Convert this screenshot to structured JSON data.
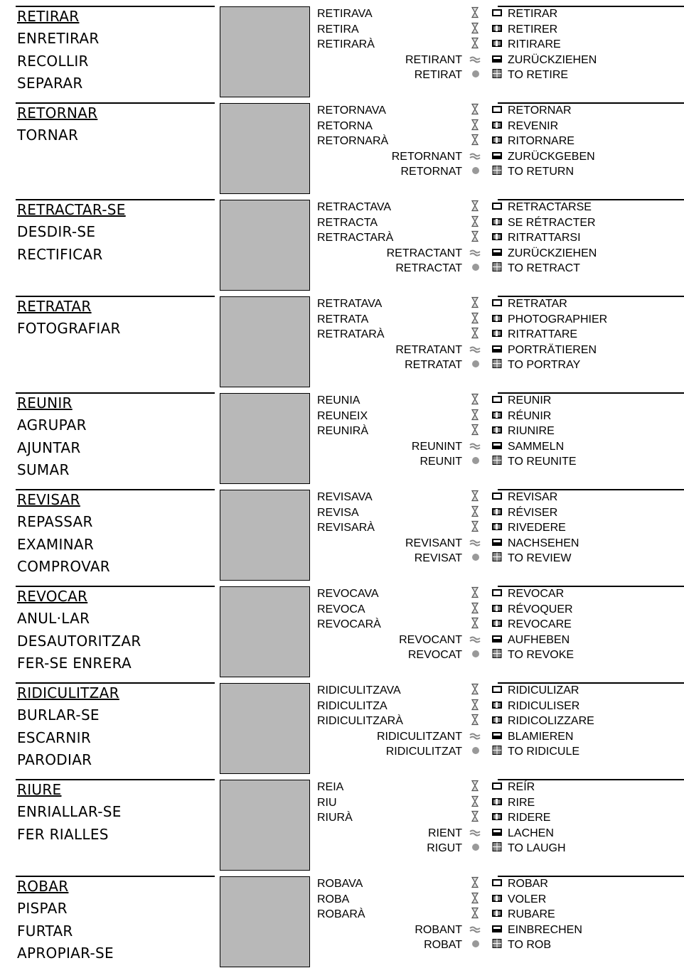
{
  "entries": [
    {
      "synonyms": [
        "RETIRAR",
        "ENRETIRAR",
        "RECOLLIR",
        "SEPARAR"
      ],
      "forms": [
        "RETIRAVA",
        "RETIRA",
        "RETIRARÀ",
        "RETIRANT",
        "RETIRAT"
      ],
      "translations": [
        "RETIRAR",
        "RETIRER",
        "RITIRARE",
        "ZURÜCKZIEHEN",
        "TO RETIRE"
      ]
    },
    {
      "synonyms": [
        "RETORNAR",
        "TORNAR"
      ],
      "forms": [
        "RETORNAVA",
        "RETORNA",
        "RETORNARÀ",
        "RETORNANT",
        "RETORNAT"
      ],
      "translations": [
        "RETORNAR",
        "REVENIR",
        "RITORNARE",
        "ZURÜCKGEBEN",
        "TO RETURN"
      ]
    },
    {
      "synonyms": [
        "RETRACTAR-SE",
        "DESDIR-SE",
        "RECTIFICAR"
      ],
      "forms": [
        "RETRACTAVA",
        "RETRACTA",
        "RETRACTARÀ",
        "RETRACTANT",
        "RETRACTAT"
      ],
      "translations": [
        "RETRACTARSE",
        "SE RÉTRACTER",
        "RITRATTARSI",
        "ZURÜCKZIEHEN",
        "TO RETRACT"
      ]
    },
    {
      "synonyms": [
        "RETRATAR",
        "FOTOGRAFIAR"
      ],
      "forms": [
        "RETRATAVA",
        "RETRATA",
        "RETRATARÀ",
        "RETRATANT",
        "RETRATAT"
      ],
      "translations": [
        "RETRATAR",
        "PHOTOGRAPHIER",
        "RITRATTARE",
        "PORTRÄTIEREN",
        "TO PORTRAY"
      ]
    },
    {
      "synonyms": [
        "REUNIR",
        "AGRUPAR",
        "AJUNTAR",
        "SUMAR"
      ],
      "forms": [
        "REUNIA",
        "REUNEIX",
        "REUNIRÀ",
        "REUNINT",
        "REUNIT"
      ],
      "translations": [
        "REUNIR",
        "RÉUNIR",
        "RIUNIRE",
        "SAMMELN",
        "TO REUNITE"
      ]
    },
    {
      "synonyms": [
        "REVISAR",
        "REPASSAR",
        "EXAMINAR",
        "COMPROVAR"
      ],
      "forms": [
        "REVISAVA",
        "REVISA",
        "REVISARÀ",
        "REVISANT",
        "REVISAT"
      ],
      "translations": [
        "REVISAR",
        "RÉVISER",
        "RIVEDERE",
        "NACHSEHEN",
        "TO REVIEW"
      ]
    },
    {
      "synonyms": [
        "REVOCAR",
        "ANUL·LAR",
        "DESAUTORITZAR",
        "FER-SE ENRERA"
      ],
      "forms": [
        "REVOCAVA",
        "REVOCA",
        "REVOCARÀ",
        "REVOCANT",
        "REVOCAT"
      ],
      "translations": [
        "REVOCAR",
        "RÉVOQUER",
        "REVOCARE",
        "AUFHEBEN",
        "TO REVOKE"
      ]
    },
    {
      "synonyms": [
        "RIDICULITZAR",
        "BURLAR-SE",
        "ESCARNIR",
        "PARODIAR"
      ],
      "forms": [
        "RIDICULITZAVA",
        "RIDICULITZA",
        "RIDICULITZARÀ",
        "RIDICULITZANT",
        "RIDICULITZAT"
      ],
      "translations": [
        "RIDICULIZAR",
        "RIDICULISER",
        "RIDICOLIZZARE",
        "BLAMIEREN",
        "TO RIDICULE"
      ]
    },
    {
      "synonyms": [
        "RIURE",
        "ENRIALLAR-SE",
        "FER RIALLES"
      ],
      "forms": [
        "REIA",
        "RIU",
        "RIURÀ",
        "RIENT",
        "RIGUT"
      ],
      "translations": [
        "REÍR",
        "RIRE",
        "RIDERE",
        "LACHEN",
        "TO LAUGH"
      ]
    },
    {
      "synonyms": [
        "ROBAR",
        "PISPAR",
        "FURTAR",
        "APROPIAR-SE"
      ],
      "forms": [
        "ROBAVA",
        "ROBA",
        "ROBARÀ",
        "ROBANT",
        "ROBAT"
      ],
      "translations": [
        "ROBAR",
        "VOLER",
        "RUBARE",
        "EINBRECHEN",
        "TO ROB"
      ]
    }
  ]
}
